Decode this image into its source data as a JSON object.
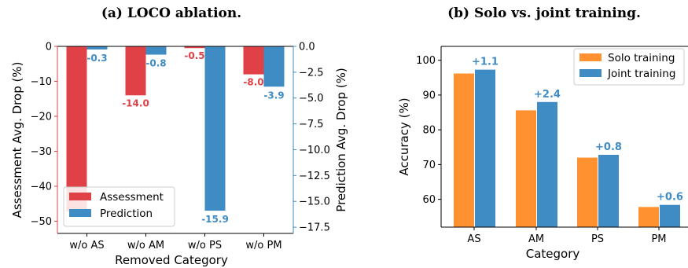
{
  "chart_data": [
    {
      "type": "bar",
      "title": "(a) LOCO ablation.",
      "xlabel": "Removed Category",
      "categories": [
        "w/o AS",
        "w/o AM",
        "w/o PS",
        "w/o PM"
      ],
      "series": [
        {
          "name": "Assessment",
          "axis": "left",
          "values": [
            -47.3,
            -14.0,
            -0.5,
            -8.0
          ],
          "labels": [
            "",
            "-14.0",
            "-0.5",
            "-8.0"
          ],
          "color": "#e04146"
        },
        {
          "name": "Prediction",
          "axis": "right",
          "values": [
            -0.3,
            -0.8,
            -15.9,
            -3.9
          ],
          "labels": [
            "-0.3",
            "-0.8",
            "-15.9",
            "-3.9"
          ],
          "color": "#3f8bc3"
        }
      ],
      "ylabel_left": "Assessment Avg. Drop (%)",
      "ylim_left": [
        -53.5,
        0
      ],
      "yticks_left": [
        "0",
        "−10",
        "−20",
        "−30",
        "−40",
        "−50"
      ],
      "ylabel_right": "Prediction Avg. Drop (%)",
      "ylim_right": [
        -18.1,
        0
      ],
      "yticks_right": [
        "0.0",
        "−2.5",
        "−5.0",
        "−7.5",
        "−10.0",
        "−12.5",
        "−15.0",
        "−17.5"
      ],
      "legend": "lower-left",
      "grid": false
    },
    {
      "type": "bar",
      "title": "(b) Solo vs. joint training.",
      "xlabel": "Category",
      "ylabel": "Accuracy (%)",
      "categories": [
        "AS",
        "AM",
        "PS",
        "PM"
      ],
      "series": [
        {
          "name": "Solo training",
          "values": [
            96.2,
            85.6,
            72.0,
            57.8
          ],
          "color": "#ff9130"
        },
        {
          "name": "Joint training",
          "values": [
            97.3,
            88.0,
            72.8,
            58.4
          ],
          "color": "#3f8bc3"
        }
      ],
      "annotations": [
        "+1.1",
        "+2.4",
        "+0.8",
        "+0.6"
      ],
      "ylim": [
        52,
        104
      ],
      "yticks": [
        "60",
        "70",
        "80",
        "90",
        "100"
      ],
      "legend": "top-right",
      "grid": false
    }
  ]
}
